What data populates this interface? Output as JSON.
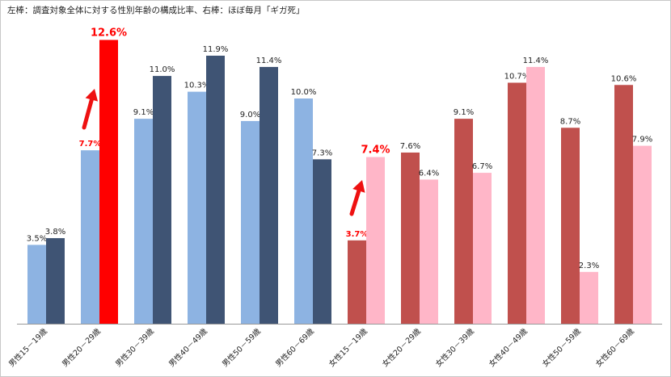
{
  "chart_data": {
    "type": "bar",
    "title": "左棒：調査対象全体に対する性別年齢の構成比率、右棒：ほぼ毎月「ギガ死」",
    "categories": [
      "男性15－19歳",
      "男性20－29歳",
      "男性30－39歳",
      "男性40－49歳",
      "男性50－59歳",
      "男性60－69歳",
      "女性15－19歳",
      "女性20－29歳",
      "女性30－39歳",
      "女性40－49歳",
      "女性50－59歳",
      "女性60－69歳"
    ],
    "series": [
      {
        "values": [
          3.5,
          7.7,
          9.1,
          10.3,
          9.0,
          10.0,
          3.7,
          7.6,
          9.1,
          10.7,
          8.7,
          10.6
        ]
      },
      {
        "values": [
          3.8,
          12.6,
          11.0,
          11.9,
          11.4,
          7.3,
          7.4,
          6.4,
          6.7,
          11.4,
          2.3,
          7.9
        ]
      }
    ],
    "value_labels": [
      [
        "3.5%",
        "7.7%",
        "9.1%",
        "10.3%",
        "9.0%",
        "10.0%",
        "3.7%",
        "7.6%",
        "9.1%",
        "10.7%",
        "8.7%",
        "10.6%"
      ],
      [
        "3.8%",
        "12.6%",
        "11.0%",
        "11.9%",
        "11.4%",
        "7.3%",
        "7.4%",
        "6.4%",
        "6.7%",
        "11.4%",
        "2.3%",
        "7.9%"
      ]
    ],
    "ylim": [
      0,
      13
    ],
    "grid": false,
    "highlighted_bars": [
      [
        1,
        0
      ],
      [
        1,
        1
      ],
      [
        6,
        0
      ],
      [
        6,
        1
      ]
    ],
    "annotations": [
      "red-arrow-male-20-29",
      "red-arrow-female-15-19"
    ],
    "colors": {
      "male_left": "#8db3e2",
      "male_right": "#3f5474",
      "female_left": "#c0504d",
      "female_right": "#ffb6c8",
      "highlight_bar": "#ff0000",
      "highlight_text": "#ff0000",
      "arrow": "#ee1111",
      "text": "#222222"
    }
  }
}
